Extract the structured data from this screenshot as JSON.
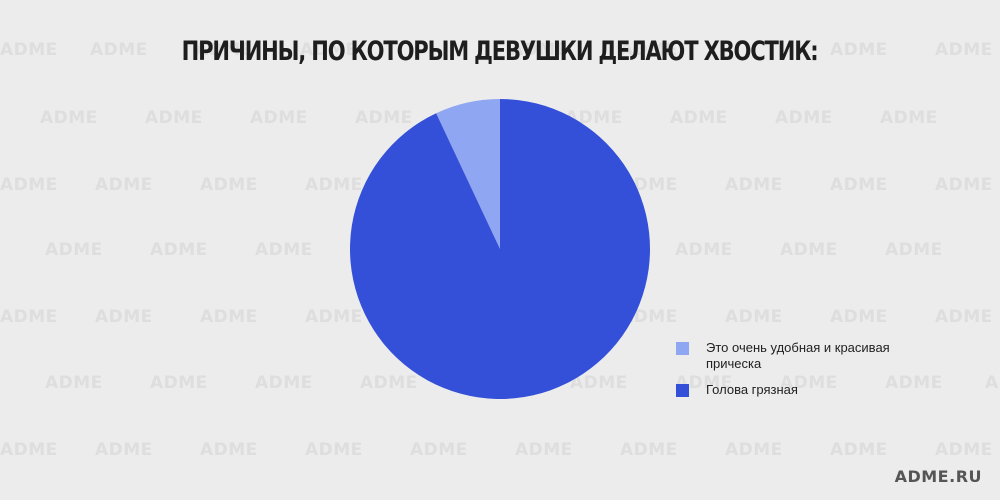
{
  "header": {
    "title": "ПРИЧИНЫ, ПО КОТОРЫМ ДЕВУШКИ ДЕЛАЮТ ХВОСТИК:"
  },
  "watermark": {
    "text": "ADME"
  },
  "footer": {
    "brand": "ADME.RU"
  },
  "chart_data": {
    "type": "pie",
    "title": "ПРИЧИНЫ, ПО КОТОРЫМ ДЕВУШКИ ДЕЛАЮТ ХВОСТИК:",
    "labels": [
      "Это очень удобная и красивая прическа",
      "Голова грязная"
    ],
    "values": [
      7,
      93
    ],
    "colors": [
      "#8fa6f2",
      "#3450d8"
    ],
    "legend_position": "right",
    "start": "12 o'clock",
    "direction": "counterclockwise"
  }
}
